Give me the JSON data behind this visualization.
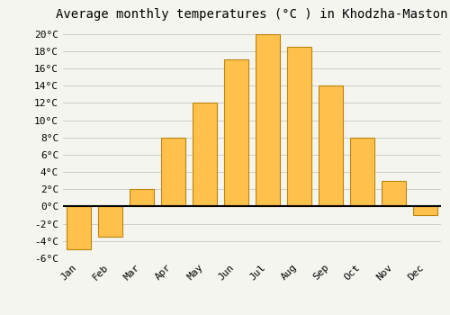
{
  "title": "Average monthly temperatures (°C ) in Khodzha-Maston",
  "months": [
    "Jan",
    "Feb",
    "Mar",
    "Apr",
    "May",
    "Jun",
    "Jul",
    "Aug",
    "Sep",
    "Oct",
    "Nov",
    "Dec"
  ],
  "values": [
    -5,
    -3.5,
    2,
    8,
    12,
    17,
    20,
    18.5,
    14,
    8,
    3,
    -1
  ],
  "bar_color": "#FFC04C",
  "bar_edge_color": "#B8860B",
  "bar_edge_width": 0.8,
  "ylim": [
    -6,
    21
  ],
  "yticks": [
    -6,
    -4,
    -2,
    0,
    2,
    4,
    6,
    8,
    10,
    12,
    14,
    16,
    18,
    20
  ],
  "ytick_labels": [
    "-6°C",
    "-4°C",
    "-2°C",
    "0°C",
    "2°C",
    "4°C",
    "6°C",
    "8°C",
    "10°C",
    "12°C",
    "14°C",
    "16°C",
    "18°C",
    "20°C"
  ],
  "background_color": "#F5F5F0",
  "grid_color": "#CCCCCC",
  "title_fontsize": 10,
  "tick_fontsize": 8,
  "font_family": "monospace"
}
